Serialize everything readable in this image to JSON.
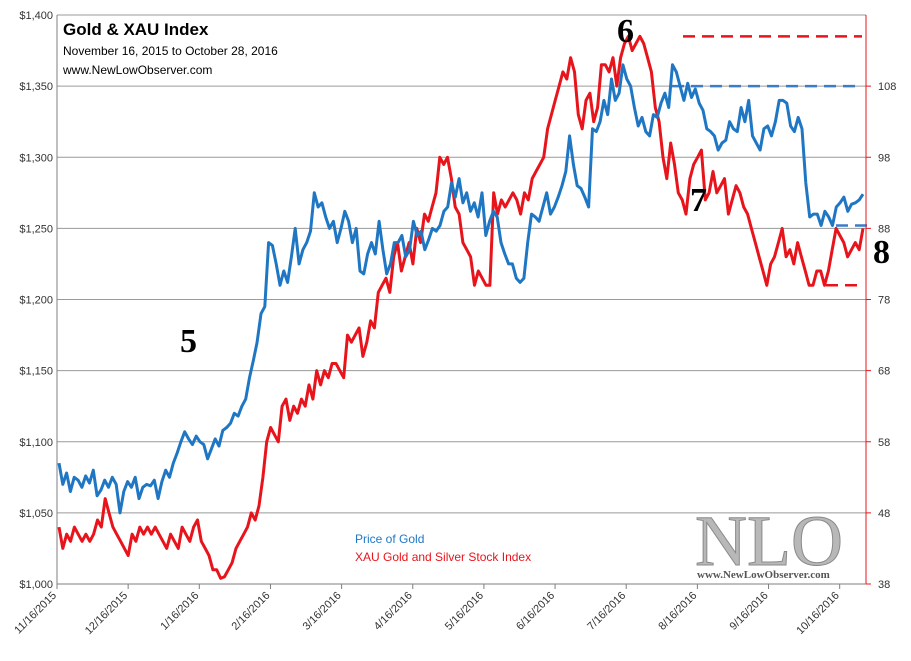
{
  "chart_data": {
    "type": "line",
    "title": "Gold & XAU Index",
    "subtitle": "November 16, 2015 to October 28, 2016",
    "source": "www.NewLowObserver.com",
    "colors": {
      "gold": "#1f77c4",
      "xau": "#e8141c",
      "grid": "#9a9a9a"
    },
    "x_labels": [
      "11/16/2015",
      "12/16/2015",
      "1/16/2016",
      "2/16/2016",
      "3/16/2016",
      "4/16/2016",
      "5/16/2016",
      "6/16/2016",
      "7/16/2016",
      "8/16/2016",
      "9/16/2016",
      "10/16/2016"
    ],
    "y_left": {
      "ticks": [
        "$1,000",
        "$1,050",
        "$1,100",
        "$1,150",
        "$1,200",
        "$1,250",
        "$1,300",
        "$1,350",
        "$1,400"
      ],
      "ylim": [
        1000,
        1400
      ]
    },
    "y_right": {
      "ticks": [
        "38",
        "48",
        "58",
        "68",
        "78",
        "88",
        "98",
        "108"
      ],
      "ylim": [
        38,
        118
      ]
    },
    "series": [
      {
        "name": "Price of Gold",
        "axis": "left",
        "values": [
          1085,
          1070,
          1078,
          1065,
          1075,
          1073,
          1068,
          1076,
          1071,
          1080,
          1062,
          1066,
          1073,
          1068,
          1075,
          1070,
          1050,
          1065,
          1072,
          1068,
          1075,
          1060,
          1068,
          1070,
          1069,
          1073,
          1060,
          1072,
          1080,
          1075,
          1085,
          1092,
          1100,
          1107,
          1102,
          1098,
          1104,
          1100,
          1098,
          1088,
          1095,
          1102,
          1097,
          1108,
          1110,
          1113,
          1120,
          1118,
          1125,
          1130,
          1145,
          1157,
          1170,
          1190,
          1195,
          1240,
          1238,
          1225,
          1210,
          1220,
          1212,
          1230,
          1250,
          1225,
          1235,
          1240,
          1248,
          1275,
          1265,
          1268,
          1258,
          1250,
          1255,
          1240,
          1250,
          1262,
          1255,
          1240,
          1250,
          1220,
          1218,
          1232,
          1240,
          1232,
          1255,
          1235,
          1218,
          1225,
          1240,
          1240,
          1245,
          1230,
          1235,
          1255,
          1245,
          1248,
          1235,
          1242,
          1250,
          1248,
          1252,
          1262,
          1265,
          1282,
          1272,
          1285,
          1268,
          1275,
          1262,
          1268,
          1258,
          1275,
          1245,
          1255,
          1262,
          1258,
          1240,
          1232,
          1225,
          1225,
          1215,
          1212,
          1215,
          1240,
          1260,
          1258,
          1255,
          1265,
          1275,
          1260,
          1265,
          1272,
          1280,
          1290,
          1315,
          1295,
          1280,
          1278,
          1272,
          1265,
          1320,
          1318,
          1325,
          1340,
          1330,
          1355,
          1340,
          1345,
          1365,
          1355,
          1350,
          1335,
          1322,
          1328,
          1318,
          1315,
          1330,
          1328,
          1338,
          1345,
          1335,
          1365,
          1360,
          1350,
          1340,
          1352,
          1342,
          1348,
          1338,
          1333,
          1320,
          1318,
          1315,
          1305,
          1310,
          1312,
          1325,
          1320,
          1318,
          1335,
          1325,
          1340,
          1315,
          1310,
          1305,
          1320,
          1322,
          1315,
          1325,
          1340,
          1340,
          1338,
          1322,
          1318,
          1328,
          1320,
          1282,
          1258,
          1260,
          1260,
          1252,
          1262,
          1258,
          1252,
          1265,
          1268,
          1272,
          1262,
          1267,
          1268,
          1270,
          1274
        ]
      },
      {
        "name": "XAU Gold and Silver Stock Index",
        "axis": "right",
        "values": [
          46,
          43,
          45,
          44,
          46,
          45,
          44,
          45,
          44,
          45,
          47,
          46,
          50,
          48,
          46,
          45,
          44,
          43,
          42,
          45,
          44,
          46,
          45,
          46,
          45,
          46,
          45,
          44,
          43,
          45,
          44,
          43,
          46,
          45,
          44,
          46,
          47,
          44,
          43,
          42,
          40,
          40,
          38.8,
          39,
          40,
          41,
          43,
          44,
          45,
          46,
          48,
          47,
          49,
          53,
          58,
          60,
          59,
          58,
          63,
          64,
          61,
          63,
          62,
          64,
          63,
          66,
          64,
          68,
          66,
          68,
          67,
          69,
          69,
          68,
          67,
          73,
          72,
          73,
          74,
          70,
          72,
          75,
          74,
          79,
          80,
          81,
          79,
          84,
          86,
          82,
          84,
          86,
          83,
          88,
          86,
          90,
          89,
          91,
          93,
          98,
          97,
          98,
          95,
          91,
          90,
          86,
          85,
          84,
          80,
          82,
          81,
          80,
          80,
          93,
          90,
          92,
          91,
          92,
          93,
          92,
          90,
          93,
          92,
          95,
          96,
          97,
          98,
          102,
          104,
          106,
          108,
          110,
          109,
          112,
          110,
          104,
          102,
          106,
          107,
          103,
          105,
          111,
          111,
          110,
          112,
          108,
          112,
          114,
          115,
          113,
          114,
          115,
          114,
          112,
          110,
          105,
          103,
          98,
          95,
          100,
          97,
          93,
          92,
          90,
          95,
          97,
          98,
          99,
          92,
          93,
          96,
          93,
          94,
          95,
          90,
          92,
          94,
          93,
          91,
          90,
          88,
          86,
          84,
          82,
          80,
          83,
          84,
          86,
          88,
          84,
          85,
          83,
          86,
          84,
          82,
          80,
          80,
          82,
          82,
          80,
          82,
          85,
          88,
          87,
          86,
          84,
          85,
          86,
          85,
          88
        ]
      }
    ],
    "legend": [
      "Price of Gold",
      "XAU Gold and Silver Stock Index"
    ],
    "annotations": [
      {
        "label": "5"
      },
      {
        "label": "6"
      },
      {
        "label": "7"
      },
      {
        "label": "8"
      }
    ],
    "reference_lines": [
      {
        "axis": "right",
        "value": 115,
        "color": "red"
      },
      {
        "axis": "right",
        "value": 108,
        "color": "blue"
      },
      {
        "axis": "right",
        "value": 80,
        "color": "red"
      },
      {
        "axis": "left",
        "value": 1252,
        "color": "blue"
      }
    ],
    "watermark": {
      "big": "NLO",
      "small": "www.NewLowObserver.com"
    }
  }
}
